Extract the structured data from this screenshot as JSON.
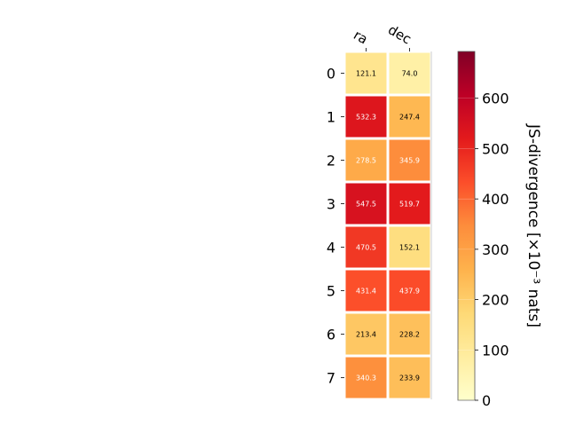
{
  "chart_data": {
    "type": "heatmap",
    "title": "",
    "columns": [
      "ra",
      "dec"
    ],
    "rows": [
      "0",
      "1",
      "2",
      "3",
      "4",
      "5",
      "6",
      "7"
    ],
    "values": [
      [
        121.1,
        74.0
      ],
      [
        532.3,
        247.4
      ],
      [
        278.5,
        345.9
      ],
      [
        547.5,
        519.7
      ],
      [
        470.5,
        152.1
      ],
      [
        431.4,
        437.9
      ],
      [
        213.4,
        228.2
      ],
      [
        340.3,
        233.9
      ]
    ],
    "colorbar": {
      "label": "JS-divergence [×10⁻³ nats]",
      "range": [
        0,
        693
      ],
      "ticks": [
        0,
        100,
        200,
        300,
        400,
        500,
        600
      ],
      "colormap": "YlOrRd"
    },
    "text_colors": {
      "dark": "#000000",
      "light": "#ffffff",
      "threshold": 250
    },
    "colors": {
      "YlOrRd": [
        "#ffffcc",
        "#ffeda0",
        "#fed976",
        "#feb24c",
        "#fd8d3c",
        "#fc4e2a",
        "#e31a1c",
        "#bd0026",
        "#800026"
      ]
    }
  }
}
